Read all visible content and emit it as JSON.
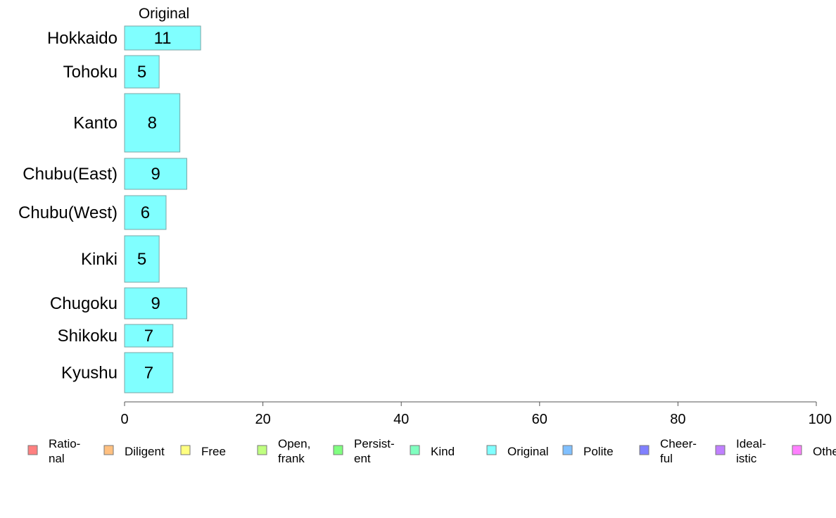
{
  "chart_data": {
    "type": "bar",
    "orientation": "horizontal",
    "layout": "variable-width mosaic",
    "column_title": "Original",
    "categories": [
      "Hokkaido",
      "Tohoku",
      "Kanto",
      "Chubu(East)",
      "Chubu(West)",
      "Kinki",
      "Chugoku",
      "Shikoku",
      "Kyushu"
    ],
    "series": [
      {
        "name": "Original",
        "color": "#80ffff",
        "values": [
          11,
          5,
          8,
          9,
          6,
          5,
          9,
          7,
          7
        ],
        "labels": [
          "11",
          "5",
          "8",
          "9",
          "6",
          "5",
          "9",
          "7",
          "7"
        ]
      }
    ],
    "xlim": [
      0,
      100
    ],
    "xticks": [
      0,
      20,
      40,
      60,
      80,
      100
    ],
    "xtick_labels": [
      "0",
      "20",
      "40",
      "60",
      "80",
      "100"
    ],
    "xlabel": "",
    "ylabel": "",
    "title": "",
    "grid": false,
    "legend_position": "bottom",
    "legend": [
      {
        "label": "Ratio-\nnal",
        "color": "#ff8080"
      },
      {
        "label": "Diligent",
        "color": "#ffc080"
      },
      {
        "label": "Free",
        "color": "#ffff80"
      },
      {
        "label": "Open,\nfrank",
        "color": "#c0ff80"
      },
      {
        "label": "Persist-\nent",
        "color": "#80ff80"
      },
      {
        "label": "Kind",
        "color": "#80ffc0"
      },
      {
        "label": "Original",
        "color": "#80ffff"
      },
      {
        "label": "Polite",
        "color": "#80c0ff"
      },
      {
        "label": "Cheer-\nful",
        "color": "#8080ff"
      },
      {
        "label": "Ideal-\nistic",
        "color": "#c080ff"
      },
      {
        "label": "Other",
        "color": "#ff80ff"
      }
    ]
  }
}
